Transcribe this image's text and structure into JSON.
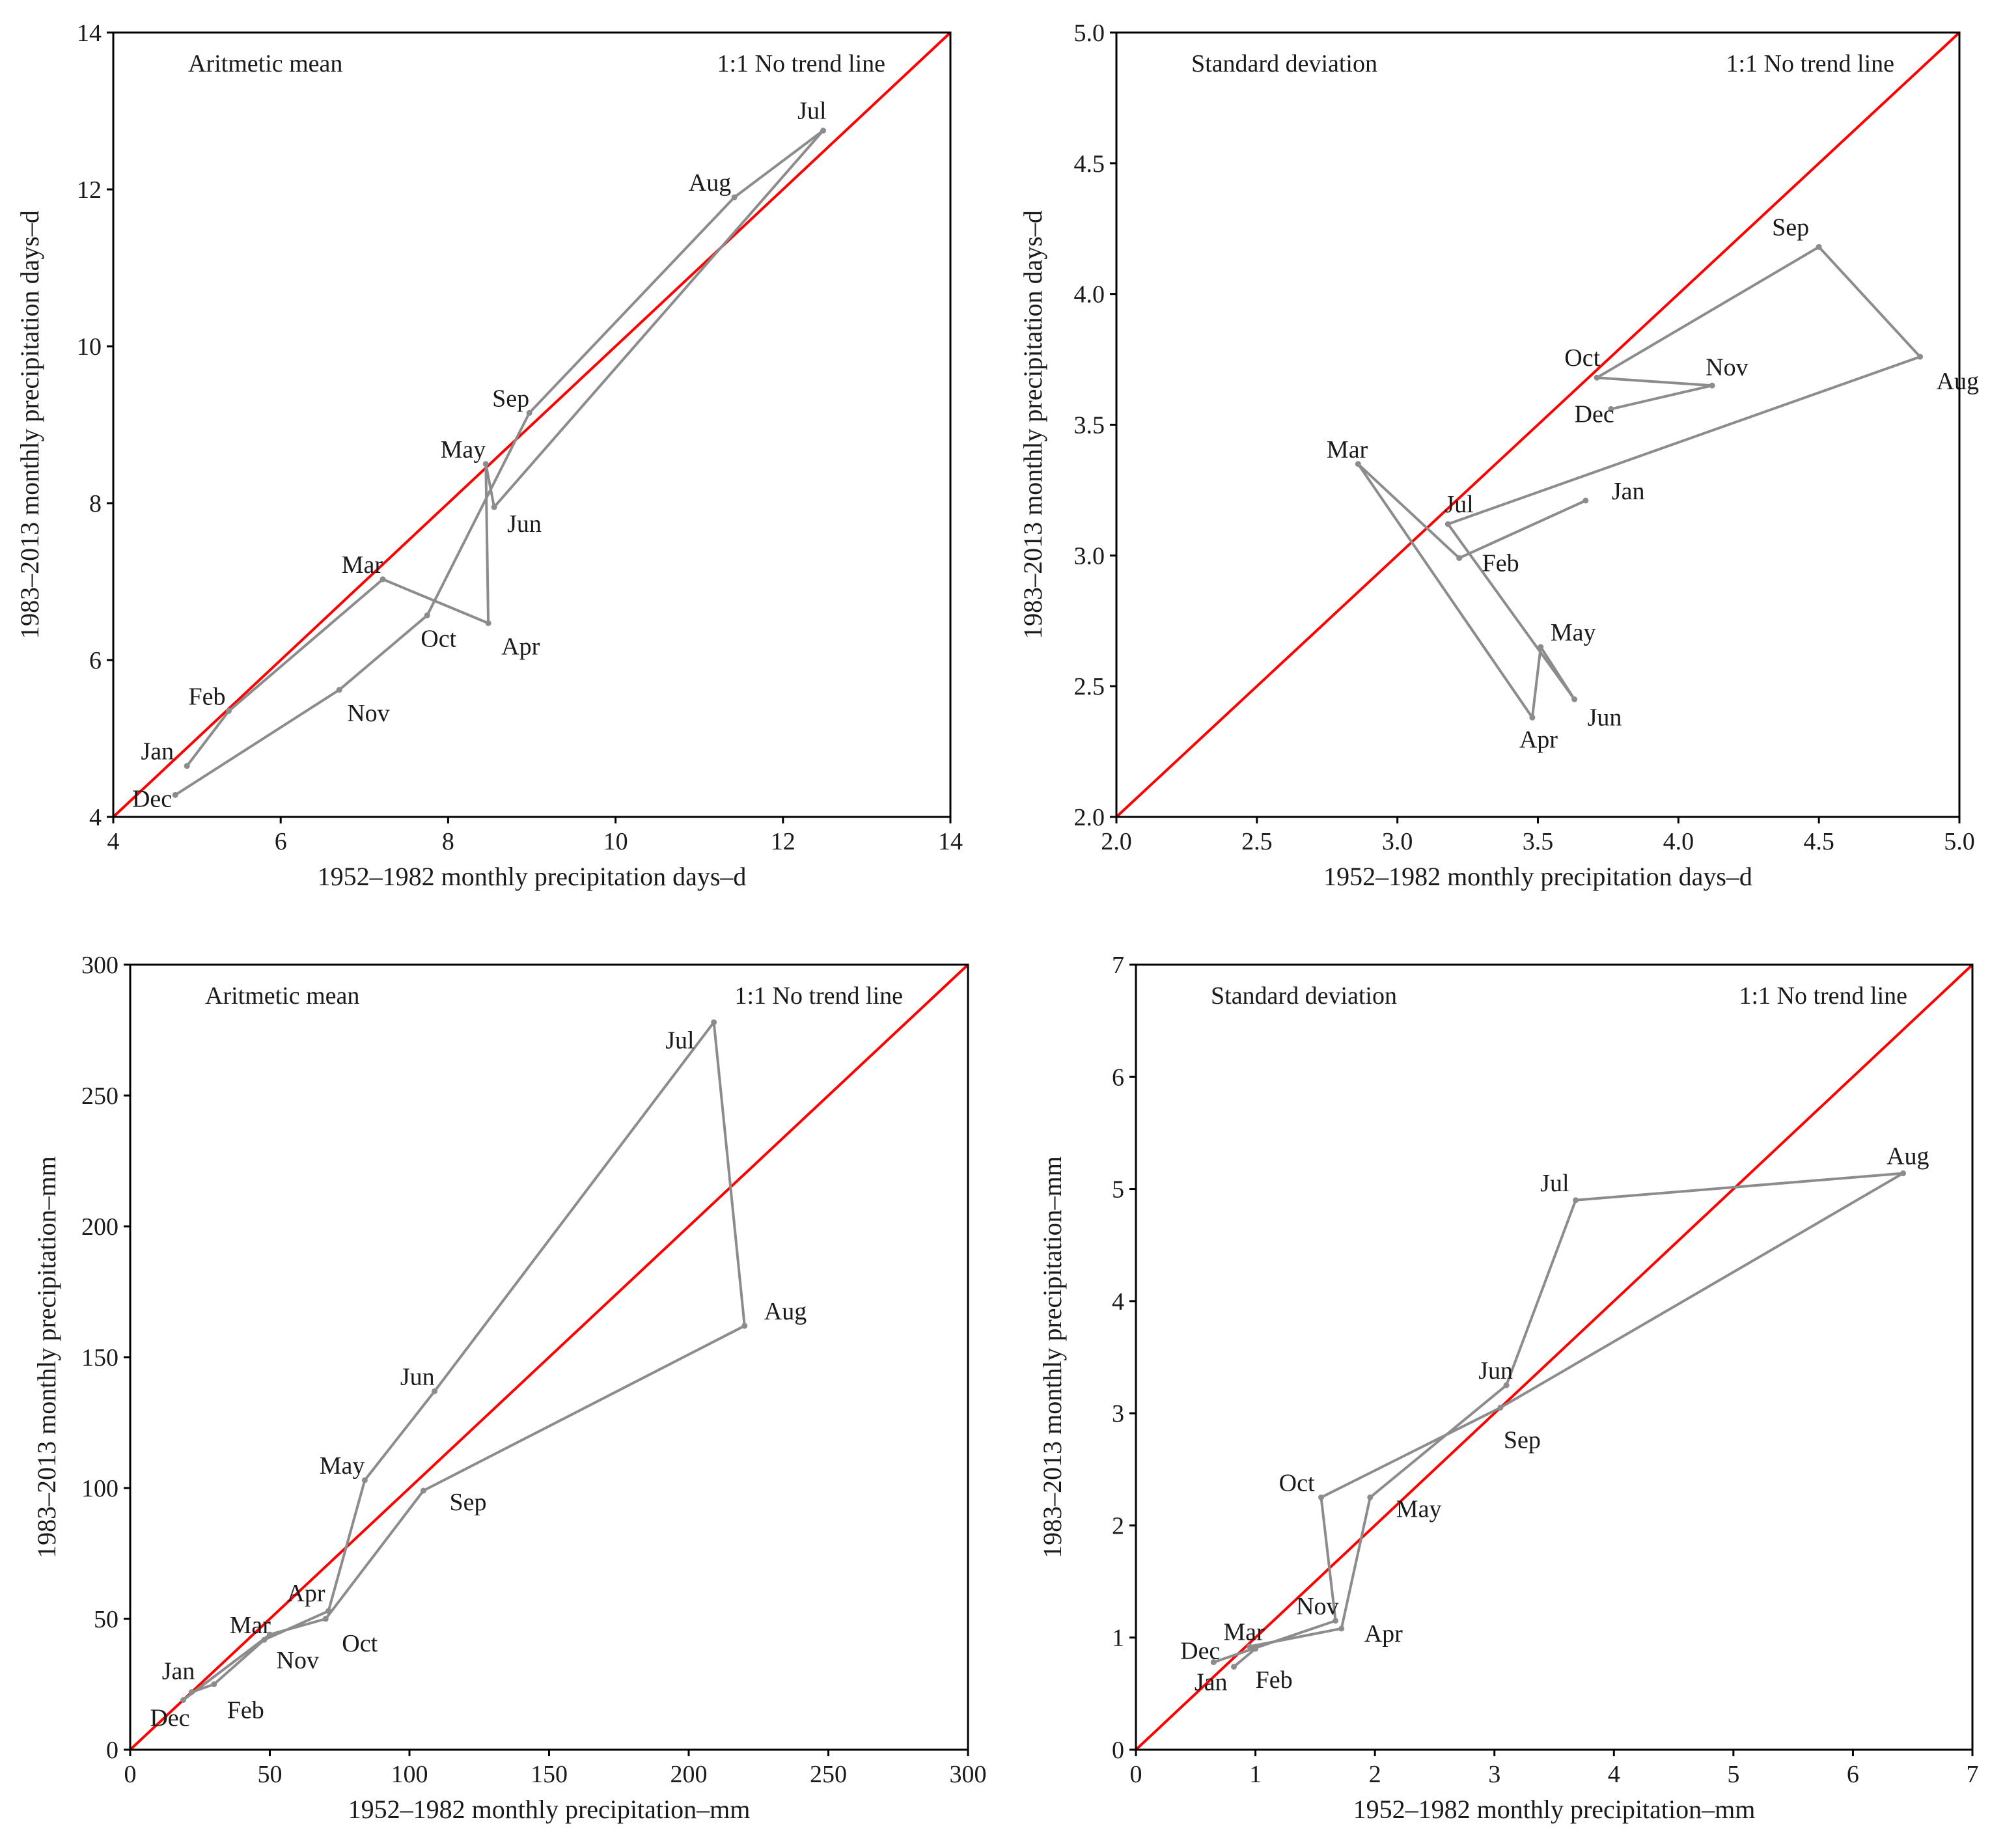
{
  "chart_data": [
    {
      "type": "line",
      "title": "Aritmetic mean",
      "annotation": "1:1 No trend line",
      "xlabel": "1952–1982 monthly precipitation days–d",
      "ylabel": "1983–2013 monthly precipitation days–d",
      "xlim": [
        4,
        14
      ],
      "ylim": [
        4,
        14
      ],
      "xticks": [
        4,
        6,
        8,
        10,
        12,
        14
      ],
      "yticks": [
        4,
        6,
        8,
        10,
        12,
        14
      ],
      "xtick_labels": [
        "4",
        "6",
        "8",
        "10",
        "12",
        "14"
      ],
      "ytick_labels": [
        "4",
        "6",
        "8",
        "10",
        "12",
        "14"
      ],
      "reference_line": "1:1",
      "colors": {
        "series": "#8c8c8c",
        "reference": "#ff0000"
      },
      "points": [
        {
          "label": "Jan",
          "x": 4.88,
          "y": 4.65
        },
        {
          "label": "Feb",
          "x": 5.38,
          "y": 5.35
        },
        {
          "label": "Mar",
          "x": 7.22,
          "y": 7.03
        },
        {
          "label": "Apr",
          "x": 8.48,
          "y": 6.47
        },
        {
          "label": "May",
          "x": 8.45,
          "y": 8.5
        },
        {
          "label": "Jun",
          "x": 8.55,
          "y": 7.95
        },
        {
          "label": "Jul",
          "x": 12.48,
          "y": 12.75
        },
        {
          "label": "Aug",
          "x": 11.42,
          "y": 11.9
        },
        {
          "label": "Sep",
          "x": 8.97,
          "y": 9.15
        },
        {
          "label": "Oct",
          "x": 7.75,
          "y": 6.57
        },
        {
          "label": "Nov",
          "x": 6.7,
          "y": 5.62
        },
        {
          "label": "Dec",
          "x": 4.74,
          "y": 4.28
        }
      ]
    },
    {
      "type": "line",
      "title": "Standard deviation",
      "annotation": "1:1 No trend line",
      "xlabel": "1952–1982 monthly precipitation days–d",
      "ylabel": "1983–2013 monthly precipitation days–d",
      "xlim": [
        2.0,
        5.0
      ],
      "ylim": [
        2.0,
        5.0
      ],
      "xticks": [
        2.0,
        2.5,
        3.0,
        3.5,
        4.0,
        4.5,
        5.0
      ],
      "yticks": [
        2.0,
        2.5,
        3.0,
        3.5,
        4.0,
        4.5,
        5.0
      ],
      "xtick_labels": [
        "2.0",
        "2.5",
        "3.0",
        "3.5",
        "4.0",
        "4.5",
        "5.0"
      ],
      "ytick_labels": [
        "2.0",
        "2.5",
        "3.0",
        "3.5",
        "4.0",
        "4.5",
        "5.0"
      ],
      "reference_line": "1:1",
      "colors": {
        "series": "#8c8c8c",
        "reference": "#ff0000"
      },
      "points": [
        {
          "label": "Jan",
          "x": 3.67,
          "y": 3.21
        },
        {
          "label": "Feb",
          "x": 3.22,
          "y": 2.99
        },
        {
          "label": "Mar",
          "x": 2.86,
          "y": 3.35
        },
        {
          "label": "Apr",
          "x": 3.48,
          "y": 2.38
        },
        {
          "label": "May",
          "x": 3.51,
          "y": 2.65
        },
        {
          "label": "Jun",
          "x": 3.63,
          "y": 2.45
        },
        {
          "label": "Jul",
          "x": 3.18,
          "y": 3.12
        },
        {
          "label": "Aug",
          "x": 4.86,
          "y": 3.76
        },
        {
          "label": "Sep",
          "x": 4.5,
          "y": 4.18
        },
        {
          "label": "Oct",
          "x": 3.71,
          "y": 3.68
        },
        {
          "label": "Nov",
          "x": 4.12,
          "y": 3.65
        },
        {
          "label": "Dec",
          "x": 3.76,
          "y": 3.56
        }
      ]
    },
    {
      "type": "line",
      "title": "Aritmetic mean",
      "annotation": "1:1 No trend line",
      "xlabel": "1952–1982  monthly precipitation–mm",
      "ylabel": "1983–2013  monthly precipitation–mm",
      "xlim": [
        0,
        300
      ],
      "ylim": [
        0,
        300
      ],
      "xticks": [
        0,
        50,
        100,
        150,
        200,
        250,
        300
      ],
      "yticks": [
        0,
        50,
        100,
        150,
        200,
        250,
        300
      ],
      "xtick_labels": [
        "0",
        "50",
        "100",
        "150",
        "200",
        "250",
        "300"
      ],
      "ytick_labels": [
        "0",
        "50",
        "100",
        "150",
        "200",
        "250",
        "300"
      ],
      "reference_line": "1:1",
      "colors": {
        "series": "#8c8c8c",
        "reference": "#ff0000"
      },
      "points": [
        {
          "label": "Jan",
          "x": 22,
          "y": 22
        },
        {
          "label": "Feb",
          "x": 30,
          "y": 25
        },
        {
          "label": "Mar",
          "x": 48,
          "y": 42
        },
        {
          "label": "Apr",
          "x": 71,
          "y": 53
        },
        {
          "label": "May",
          "x": 84,
          "y": 103
        },
        {
          "label": "Jun",
          "x": 109,
          "y": 137
        },
        {
          "label": "Jul",
          "x": 209,
          "y": 278
        },
        {
          "label": "Aug",
          "x": 220,
          "y": 162
        },
        {
          "label": "Sep",
          "x": 105,
          "y": 99
        },
        {
          "label": "Oct",
          "x": 70,
          "y": 50
        },
        {
          "label": "Nov",
          "x": 50,
          "y": 44
        },
        {
          "label": "Dec",
          "x": 19,
          "y": 19
        }
      ]
    },
    {
      "type": "line",
      "title": "Standard deviation",
      "annotation": "1:1 No trend line",
      "xlabel": "1952–1982 monthly precipitation–mm",
      "ylabel": "1983–2013 monthly precipitation–mm",
      "xlim": [
        0,
        7
      ],
      "ylim": [
        0,
        7
      ],
      "xticks": [
        0,
        1,
        2,
        3,
        4,
        5,
        6,
        7
      ],
      "yticks": [
        0,
        1,
        2,
        3,
        4,
        5,
        6,
        7
      ],
      "xtick_labels": [
        "0",
        "1",
        "2",
        "3",
        "4",
        "5",
        "6",
        "7"
      ],
      "ytick_labels": [
        "0",
        "1",
        "2",
        "3",
        "4",
        "5",
        "6",
        "7"
      ],
      "reference_line": "1:1",
      "colors": {
        "series": "#8c8c8c",
        "reference": "#ff0000"
      },
      "points": [
        {
          "label": "Jan",
          "x": 0.82,
          "y": 0.74
        },
        {
          "label": "Feb",
          "x": 1.0,
          "y": 0.9
        },
        {
          "label": "Mar",
          "x": 0.95,
          "y": 0.92
        },
        {
          "label": "Apr",
          "x": 1.72,
          "y": 1.08
        },
        {
          "label": "May",
          "x": 1.96,
          "y": 2.25
        },
        {
          "label": "Jun",
          "x": 3.1,
          "y": 3.25
        },
        {
          "label": "Jul",
          "x": 3.68,
          "y": 4.9
        },
        {
          "label": "Aug",
          "x": 6.42,
          "y": 5.14
        },
        {
          "label": "Sep",
          "x": 3.05,
          "y": 3.05
        },
        {
          "label": "Oct",
          "x": 1.55,
          "y": 2.25
        },
        {
          "label": "Nov",
          "x": 1.67,
          "y": 1.15
        },
        {
          "label": "Dec",
          "x": 0.65,
          "y": 0.78
        }
      ]
    }
  ]
}
